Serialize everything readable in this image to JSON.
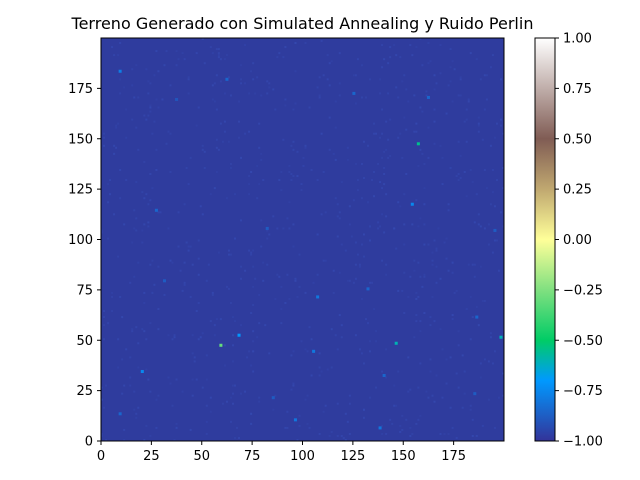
{
  "chart_data": {
    "type": "heatmap",
    "title": "Terreno Generado con Simulated Annealing y Ruido Perlin",
    "xlabel": "",
    "ylabel": "",
    "grid_size": 200,
    "xlim": [
      0,
      200
    ],
    "ylim": [
      0,
      200
    ],
    "x_ticks": [
      0,
      25,
      50,
      75,
      100,
      125,
      150,
      175
    ],
    "y_ticks": [
      0,
      25,
      50,
      75,
      100,
      125,
      150,
      175
    ],
    "colormap": "terrain",
    "color_range": [
      -1.0,
      1.0
    ],
    "colorbar_ticks": [
      "1.00",
      "0.75",
      "0.50",
      "0.25",
      "0.00",
      "−0.25",
      "−0.50",
      "−0.75",
      "−1.00"
    ],
    "colorbar_tick_values": [
      1.0,
      0.75,
      0.5,
      0.25,
      0.0,
      -0.25,
      -0.5,
      -0.75,
      -1.0
    ],
    "background_value": -1.0,
    "grid": false,
    "colorbar_position": "right",
    "highlights": [
      {
        "x": 9,
        "y": 183,
        "value": -0.78
      },
      {
        "x": 62,
        "y": 179,
        "value": -0.85
      },
      {
        "x": 125,
        "y": 172,
        "value": -0.85
      },
      {
        "x": 162,
        "y": 170,
        "value": -0.85
      },
      {
        "x": 37,
        "y": 169,
        "value": -0.9
      },
      {
        "x": 157,
        "y": 147,
        "value": -0.55
      },
      {
        "x": 154,
        "y": 117,
        "value": -0.75
      },
      {
        "x": 27,
        "y": 114,
        "value": -0.85
      },
      {
        "x": 82,
        "y": 105,
        "value": -0.88
      },
      {
        "x": 195,
        "y": 104,
        "value": -0.88
      },
      {
        "x": 31,
        "y": 79,
        "value": -0.88
      },
      {
        "x": 132,
        "y": 75,
        "value": -0.85
      },
      {
        "x": 107,
        "y": 71,
        "value": -0.8
      },
      {
        "x": 186,
        "y": 61,
        "value": -0.85
      },
      {
        "x": 68,
        "y": 52,
        "value": -0.7
      },
      {
        "x": 198,
        "y": 51,
        "value": -0.6
      },
      {
        "x": 146,
        "y": 48,
        "value": -0.6
      },
      {
        "x": 59,
        "y": 47,
        "value": -0.3
      },
      {
        "x": 105,
        "y": 44,
        "value": -0.8
      },
      {
        "x": 20,
        "y": 34,
        "value": -0.75
      },
      {
        "x": 140,
        "y": 32,
        "value": -0.85
      },
      {
        "x": 185,
        "y": 23,
        "value": -0.88
      },
      {
        "x": 85,
        "y": 21,
        "value": -0.88
      },
      {
        "x": 9,
        "y": 13,
        "value": -0.85
      },
      {
        "x": 96,
        "y": 10,
        "value": -0.8
      },
      {
        "x": 138,
        "y": 6,
        "value": -0.8
      }
    ]
  }
}
